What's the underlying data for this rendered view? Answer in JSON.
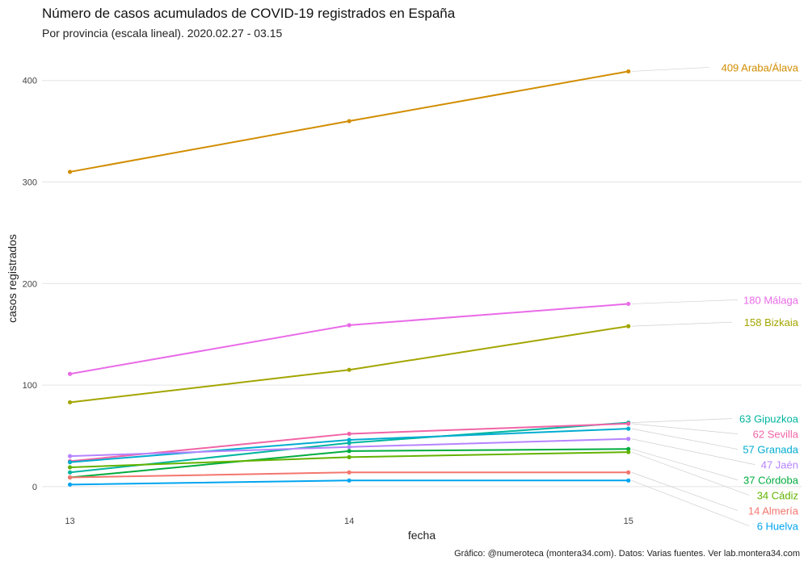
{
  "chart_data": {
    "type": "line",
    "title": "Número de casos acumulados de COVID-19 registrados en España",
    "subtitle": "Por provincia (escala lineal). 2020.02.27 - 03.15",
    "xlabel": "fecha",
    "ylabel": "casos registrados",
    "caption": "Gráfico: @numeroteca (montera34.com). Datos: Varias fuentes. Ver lab.montera34.com",
    "x": [
      13,
      14,
      15
    ],
    "x_tick_labels": [
      "13",
      "14",
      "15"
    ],
    "y_ticks": [
      0,
      100,
      200,
      300,
      400
    ],
    "y_tick_labels": [
      "0",
      "100",
      "200",
      "300",
      "400"
    ],
    "xlim": [
      12.9,
      15.62
    ],
    "ylim": [
      -20,
      430
    ],
    "grid": true,
    "legend": "end-labels-right",
    "series": [
      {
        "name": "Araba/Álava",
        "label": "409 Araba/Álava",
        "color": "#d18d00",
        "values": [
          310,
          360,
          409
        ]
      },
      {
        "name": "Málaga",
        "label": "180 Málaga",
        "color": "#e96be8",
        "values": [
          111,
          159,
          180
        ]
      },
      {
        "name": "Bizkaia",
        "label": "158 Bizkaia",
        "color": "#a3a500",
        "values": [
          83,
          115,
          158
        ]
      },
      {
        "name": "Gipuzkoa",
        "label": "63 Gipuzkoa",
        "color": "#00b5a0",
        "values": [
          14,
          43,
          63
        ]
      },
      {
        "name": "Sevilla",
        "label": "62 Sevilla",
        "color": "#f064a6",
        "values": [
          25,
          52,
          62
        ]
      },
      {
        "name": "Granada",
        "label": "57 Granada",
        "color": "#00acd0",
        "values": [
          24,
          46,
          57
        ]
      },
      {
        "name": "Jaén",
        "label": "47 Jaén",
        "color": "#b683ff",
        "values": [
          30,
          39,
          47
        ]
      },
      {
        "name": "Córdoba",
        "label": "37 Córdoba",
        "color": "#00ac3e",
        "values": [
          9,
          35,
          37
        ]
      },
      {
        "name": "Cádiz",
        "label": "34 Cádiz",
        "color": "#62b200",
        "values": [
          19,
          29,
          34
        ]
      },
      {
        "name": "Almería",
        "label": "14 Almería",
        "color": "#f3766e",
        "values": [
          9,
          14,
          14
        ]
      },
      {
        "name": "Huelva",
        "label": "6 Huelva",
        "color": "#00a4ef",
        "values": [
          2,
          6,
          6
        ]
      }
    ]
  }
}
